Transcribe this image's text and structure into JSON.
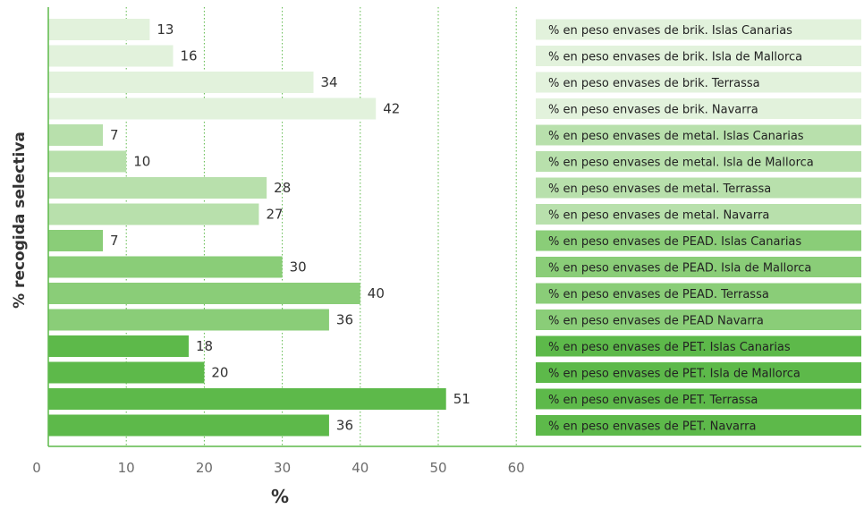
{
  "chart_data": {
    "type": "bar",
    "orientation": "horizontal",
    "xlabel": "%",
    "ylabel": "% recogida selectiva",
    "xlim": [
      0,
      60
    ],
    "xticks": [
      0,
      10,
      20,
      30,
      40,
      50,
      60
    ],
    "grid": "vertical dotted",
    "legend_position": "right",
    "bars": [
      {
        "label": "% en peso envases de brik. Islas Canarias",
        "value": 13,
        "color": "#e2f2dc"
      },
      {
        "label": "% en peso envases de brik. Isla de Mallorca",
        "value": 16,
        "color": "#e2f2dc"
      },
      {
        "label": "% en peso envases de brik. Terrassa",
        "value": 34,
        "color": "#e2f2dc"
      },
      {
        "label": "% en peso envases de brik. Navarra",
        "value": 42,
        "color": "#e2f2dc"
      },
      {
        "label": "% en peso envases de metal. Islas Canarias",
        "value": 7,
        "color": "#b8e0ac"
      },
      {
        "label": "% en peso envases de metal. Isla de Mallorca",
        "value": 10,
        "color": "#b8e0ac"
      },
      {
        "label": "% en peso envases de metal. Terrassa",
        "value": 28,
        "color": "#b8e0ac"
      },
      {
        "label": "% en peso envases de metal. Navarra",
        "value": 27,
        "color": "#b8e0ac"
      },
      {
        "label": "% en peso envases de PEAD. Islas Canarias",
        "value": 7,
        "color": "#8acd78"
      },
      {
        "label": "% en peso envases de PEAD. Isla de Mallorca",
        "value": 30,
        "color": "#8acd78"
      },
      {
        "label": "% en peso envases de PEAD. Terrassa",
        "value": 40,
        "color": "#8acd78"
      },
      {
        "label": "% en peso envases de PEAD Navarra",
        "value": 36,
        "color": "#8acd78"
      },
      {
        "label": "% en peso envases de PET. Islas Canarias",
        "value": 18,
        "color": "#5db94a"
      },
      {
        "label": "% en peso envases de PET. Isla de Mallorca",
        "value": 20,
        "color": "#5db94a"
      },
      {
        "label": "% en peso envases de PET. Terrassa",
        "value": 51,
        "color": "#5db94a"
      },
      {
        "label": "% en peso envases de PET. Navarra",
        "value": 36,
        "color": "#5db94a"
      }
    ]
  },
  "colors": {
    "axis": "#5db94a",
    "grid": "#5db94a"
  }
}
